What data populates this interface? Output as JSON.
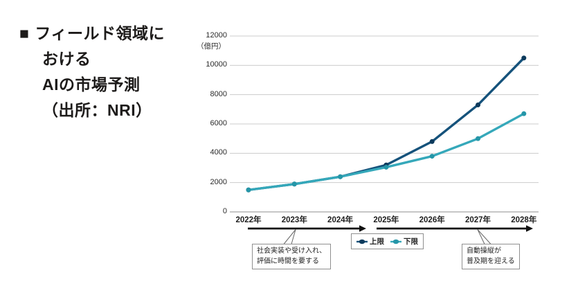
{
  "title": {
    "bullet": "■",
    "lines": [
      "フィールド領域に",
      "おける",
      "AIの市場予測",
      "（出所：NRI）"
    ]
  },
  "chart_data": {
    "type": "line",
    "title": "フィールド領域におけるAIの市場予測（出所：NRI）",
    "unit_label": "（億円）",
    "xlabel": "",
    "ylabel": "（億円）",
    "categories": [
      "2022年",
      "2023年",
      "2024年",
      "2025年",
      "2026年",
      "2027年",
      "2028年"
    ],
    "series": [
      {
        "name": "上限",
        "color": "#15527b",
        "marker_color": "#0d3a5c",
        "values": [
          1500,
          1900,
          2400,
          3200,
          4800,
          7300,
          10500
        ]
      },
      {
        "name": "下限",
        "color": "#35a8ba",
        "marker_color": "#2596a8",
        "values": [
          1500,
          1900,
          2400,
          3050,
          3800,
          5000,
          6700
        ]
      }
    ],
    "ylim": [
      0,
      12000
    ],
    "ytick_step": 2000,
    "yticks": [
      "12000",
      "10000",
      "8000",
      "6000",
      "4000",
      "2000",
      "0"
    ],
    "grid": true,
    "legend_position": "bottom",
    "annotations": [
      {
        "lines": [
          "社会実装や受け入れ、",
          "評価に時間を要する"
        ]
      },
      {
        "lines": [
          "自動操縦が",
          "普及期を迎える"
        ]
      }
    ]
  },
  "colors": {
    "grid": "#cccccc",
    "axis": "#8c8c8c",
    "arrow": "#111111",
    "connector": "#666666",
    "text": "#1d1b1a"
  }
}
